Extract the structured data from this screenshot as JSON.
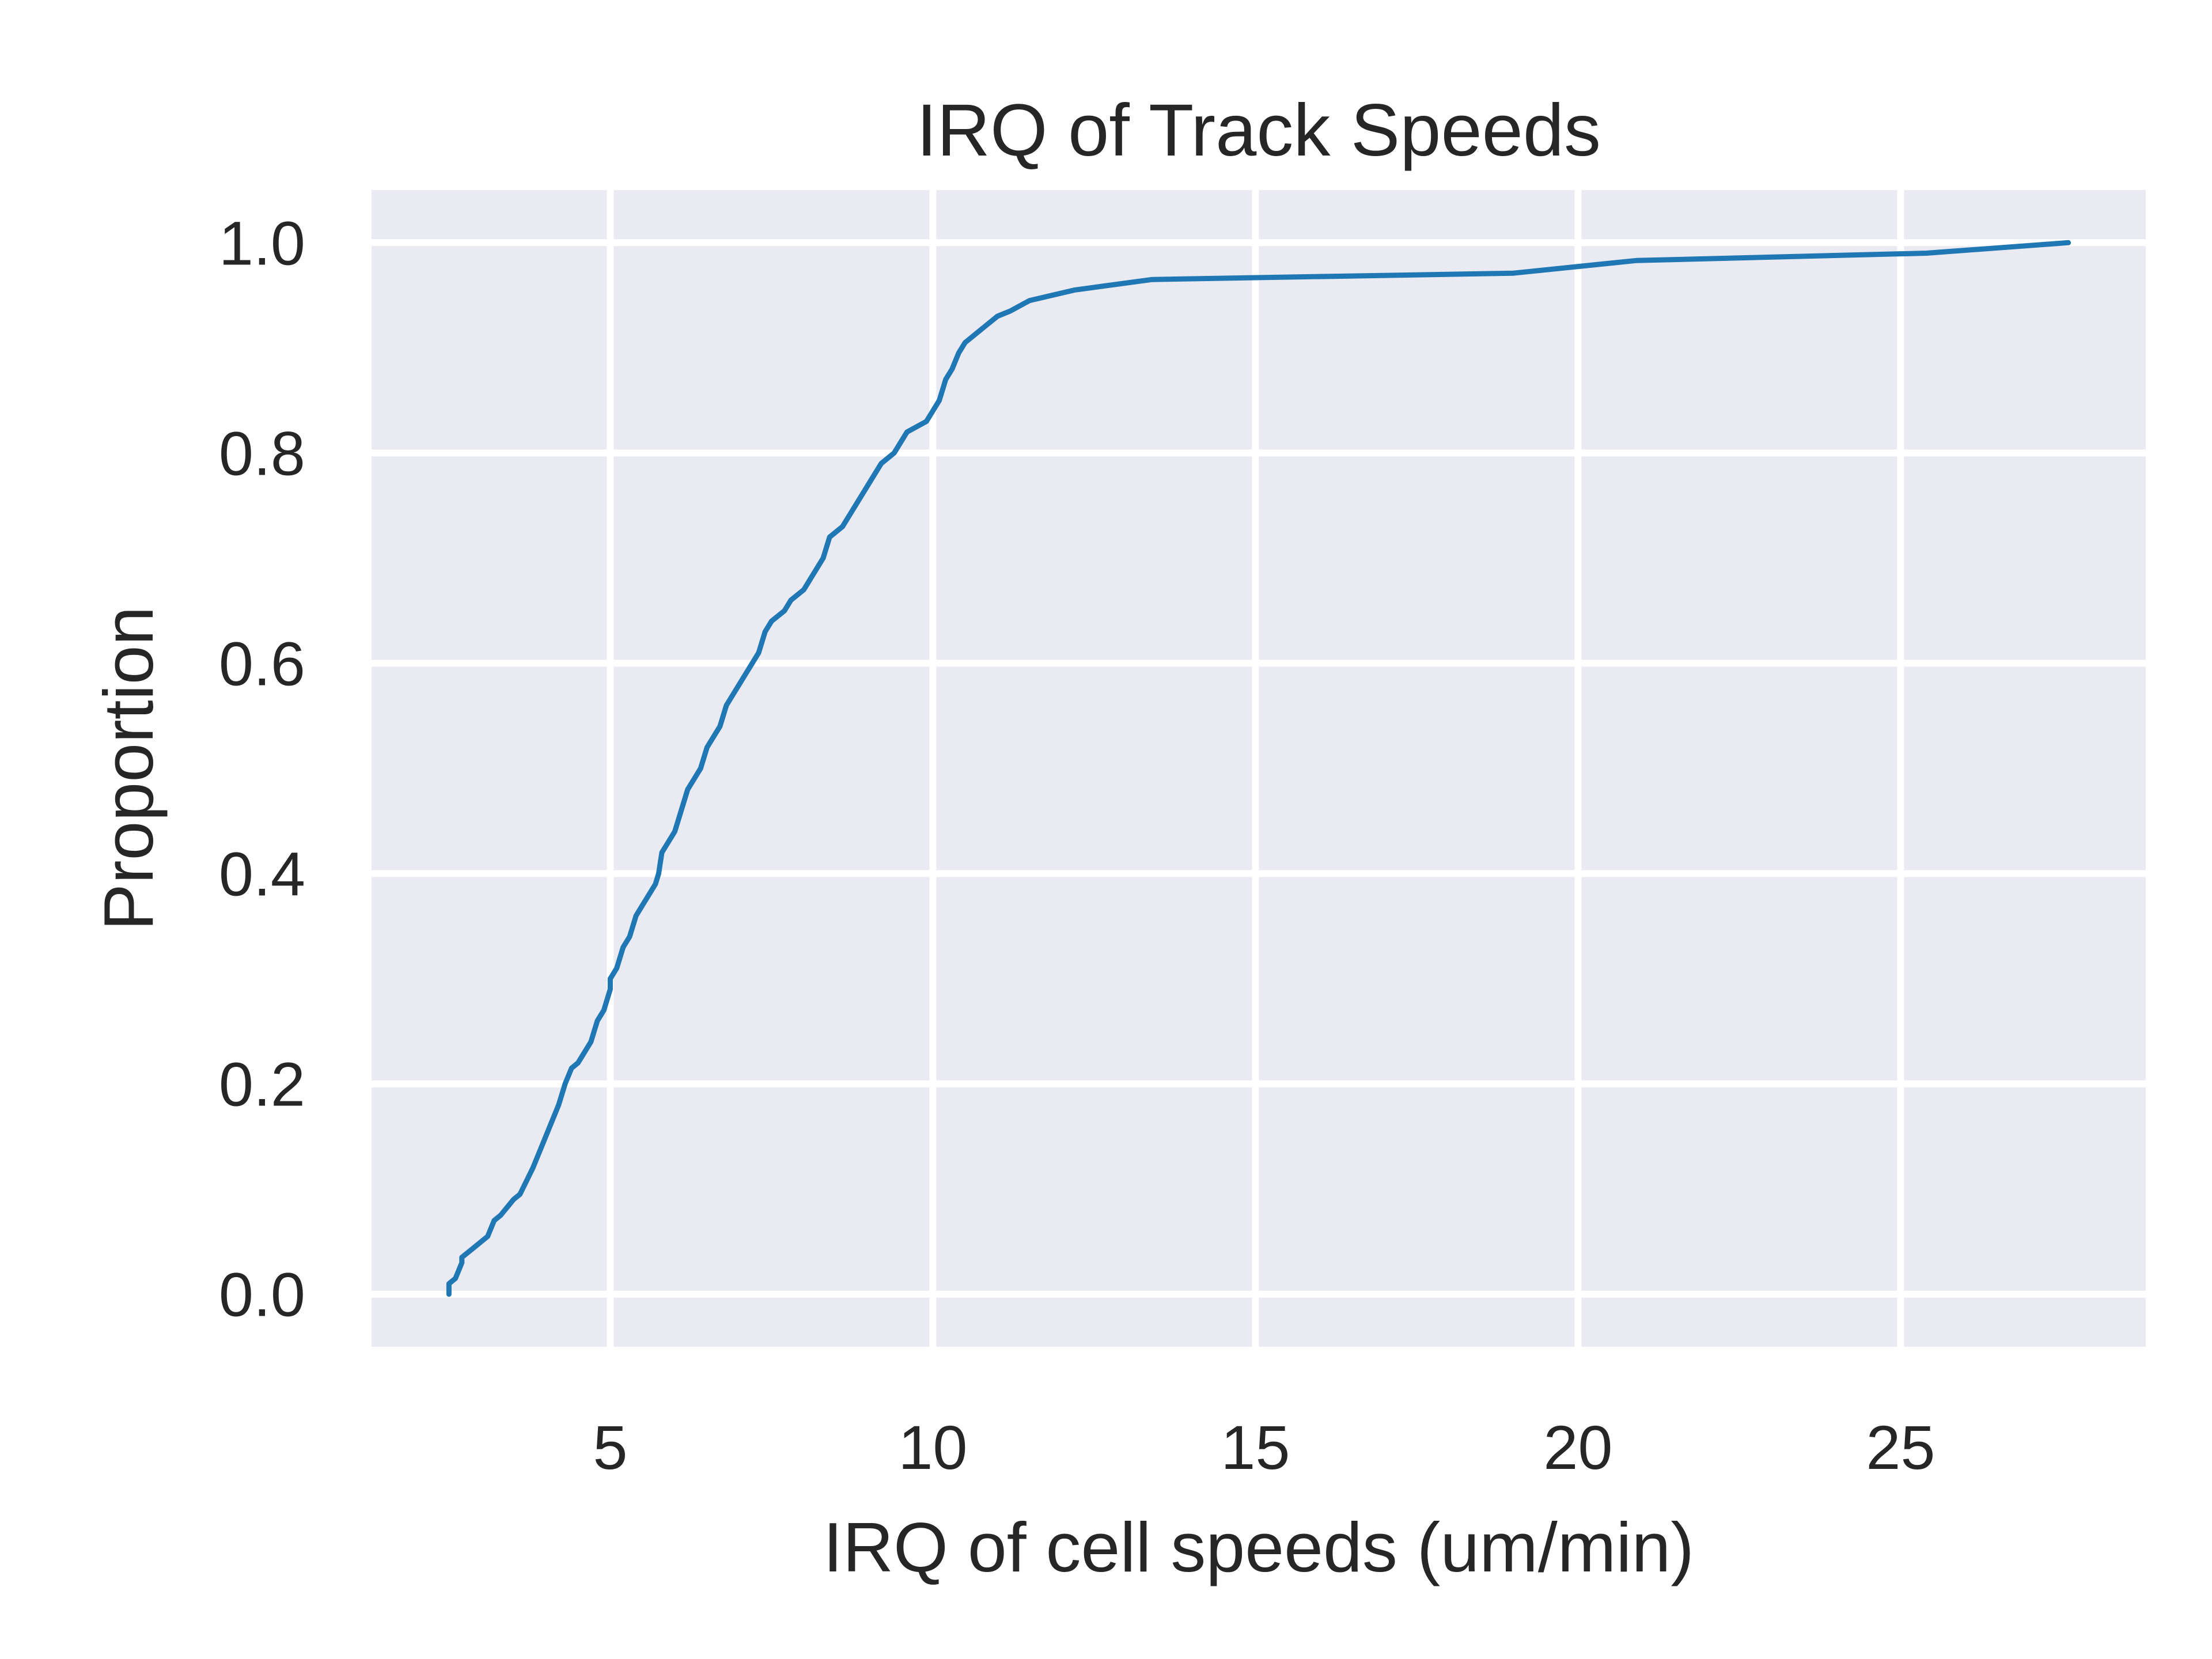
{
  "chart_data": {
    "type": "line",
    "title": "IRQ of Track Speeds",
    "xlabel": "IRQ of cell speeds (um/min)",
    "ylabel": "Proportion",
    "xlim": [
      1.3,
      28.8
    ],
    "ylim": [
      -0.05,
      1.05
    ],
    "xticks": [
      5,
      10,
      15,
      20,
      25
    ],
    "xtick_labels": [
      "5",
      "10",
      "15",
      "20",
      "25"
    ],
    "yticks": [
      0.0,
      0.2,
      0.4,
      0.6,
      0.8,
      1.0
    ],
    "ytick_labels": [
      "0.0",
      "0.2",
      "0.4",
      "0.6",
      "0.8",
      "1.0"
    ],
    "grid": true,
    "legend": "none",
    "colors": {
      "line": "#1f77b4",
      "background": "#eaeaf2",
      "grid": "#ffffff",
      "text": "#262626"
    },
    "series": [
      {
        "x": [
          2.5,
          2.5,
          2.6,
          2.7,
          2.7,
          2.9,
          3.1,
          3.2,
          3.3,
          3.5,
          3.6,
          3.8,
          4.0,
          4.1,
          4.2,
          4.25,
          4.3,
          4.4,
          4.5,
          4.6,
          4.7,
          4.8,
          4.9,
          5.0,
          5.0,
          5.1,
          5.2,
          5.3,
          5.35,
          5.4,
          5.5,
          5.6,
          5.7,
          5.75,
          5.8,
          5.9,
          6.0,
          6.05,
          6.1,
          6.2,
          6.3,
          6.4,
          6.5,
          6.6,
          6.7,
          6.8,
          6.9,
          7.0,
          7.1,
          7.2,
          7.3,
          7.35,
          7.4,
          7.5,
          7.7,
          7.8,
          8.0,
          8.1,
          8.3,
          8.4,
          8.6,
          8.8,
          8.9,
          9.0,
          9.1,
          9.2,
          9.4,
          9.6,
          9.9,
          10.0,
          10.1,
          10.2,
          10.3,
          10.4,
          10.5,
          10.8,
          11.0,
          11.2,
          11.5,
          12.2,
          13.4,
          19.0,
          20.9,
          25.4,
          27.6
        ],
        "y": [
          0.0,
          0.01,
          0.015,
          0.03,
          0.035,
          0.045,
          0.055,
          0.07,
          0.075,
          0.09,
          0.095,
          0.12,
          0.15,
          0.165,
          0.18,
          0.19,
          0.2,
          0.215,
          0.22,
          0.23,
          0.24,
          0.26,
          0.27,
          0.29,
          0.3,
          0.31,
          0.33,
          0.34,
          0.35,
          0.36,
          0.37,
          0.38,
          0.39,
          0.4,
          0.42,
          0.43,
          0.44,
          0.45,
          0.46,
          0.48,
          0.49,
          0.5,
          0.52,
          0.53,
          0.54,
          0.56,
          0.57,
          0.58,
          0.59,
          0.6,
          0.61,
          0.62,
          0.63,
          0.64,
          0.65,
          0.66,
          0.67,
          0.68,
          0.7,
          0.72,
          0.73,
          0.75,
          0.76,
          0.77,
          0.78,
          0.79,
          0.8,
          0.82,
          0.83,
          0.84,
          0.85,
          0.87,
          0.88,
          0.895,
          0.905,
          0.92,
          0.93,
          0.935,
          0.945,
          0.955,
          0.965,
          0.971,
          0.983,
          0.99,
          1.0
        ]
      }
    ]
  }
}
